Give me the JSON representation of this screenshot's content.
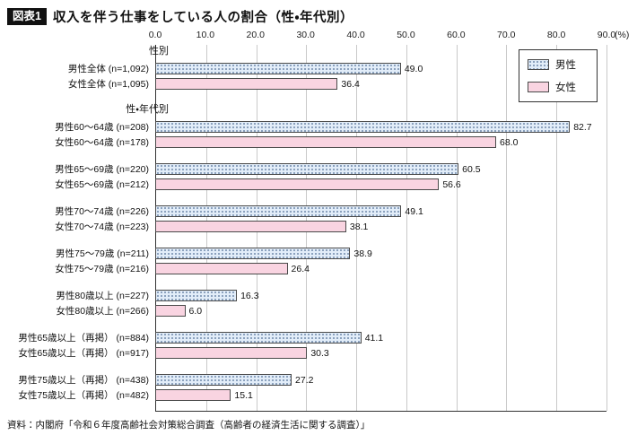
{
  "header": {
    "badge": "図表1",
    "title": "収入を伴う仕事をしている人の割合（性・年代別）"
  },
  "legend": {
    "male": "男性",
    "female": "女性"
  },
  "source": "資料：内閣府「令和６年度高齢社会対策総合調査（高齢者の経済生活に関する調査）」",
  "chart_data": {
    "type": "bar",
    "orientation": "horizontal",
    "title": "収入を伴う仕事をしている人の割合（性・年代別）",
    "unit": "(%)",
    "xlim": [
      0,
      90
    ],
    "xticks": [
      0,
      10,
      20,
      30,
      40,
      50,
      60,
      70,
      80,
      90
    ],
    "grid": true,
    "legend_position": "top-right",
    "series_names": [
      "男性",
      "女性"
    ],
    "colors": {
      "male_fill": "#e2edf9",
      "male_dots": "#7089aa",
      "female_fill": "#f9d4e1",
      "bar_border": "#4a4a4a"
    },
    "groups": [
      {
        "section": "性別",
        "rows": [
          {
            "label": "男性全体",
            "n": "(n=1,092)",
            "series": "male",
            "value": 49.0
          },
          {
            "label": "女性全体",
            "n": "(n=1,095)",
            "series": "female",
            "value": 36.4
          }
        ]
      },
      {
        "section": "性・年代別",
        "rows": [
          {
            "label": "男性60〜64歳",
            "n": "(n=208)",
            "series": "male",
            "value": 82.7
          },
          {
            "label": "女性60〜64歳",
            "n": "(n=178)",
            "series": "female",
            "value": 68.0
          }
        ]
      },
      {
        "rows": [
          {
            "label": "男性65〜69歳",
            "n": "(n=220)",
            "series": "male",
            "value": 60.5
          },
          {
            "label": "女性65〜69歳",
            "n": "(n=212)",
            "series": "female",
            "value": 56.6
          }
        ]
      },
      {
        "rows": [
          {
            "label": "男性70〜74歳",
            "n": "(n=226)",
            "series": "male",
            "value": 49.1
          },
          {
            "label": "女性70〜74歳",
            "n": "(n=223)",
            "series": "female",
            "value": 38.1
          }
        ]
      },
      {
        "rows": [
          {
            "label": "男性75〜79歳",
            "n": "(n=211)",
            "series": "male",
            "value": 38.9
          },
          {
            "label": "女性75〜79歳",
            "n": "(n=216)",
            "series": "female",
            "value": 26.4
          }
        ]
      },
      {
        "rows": [
          {
            "label": "男性80歳以上",
            "n": "(n=227)",
            "series": "male",
            "value": 16.3
          },
          {
            "label": "女性80歳以上",
            "n": "(n=266)",
            "series": "female",
            "value": 6.0
          }
        ]
      },
      {
        "rows": [
          {
            "label": "男性65歳以上（再掲）",
            "n": "(n=884)",
            "series": "male",
            "value": 41.1
          },
          {
            "label": "女性65歳以上（再掲）",
            "n": "(n=917)",
            "series": "female",
            "value": 30.3
          }
        ]
      },
      {
        "rows": [
          {
            "label": "男性75歳以上（再掲）",
            "n": "(n=438)",
            "series": "male",
            "value": 27.2
          },
          {
            "label": "女性75歳以上（再掲）",
            "n": "(n=482)",
            "series": "female",
            "value": 15.1
          }
        ]
      }
    ]
  }
}
